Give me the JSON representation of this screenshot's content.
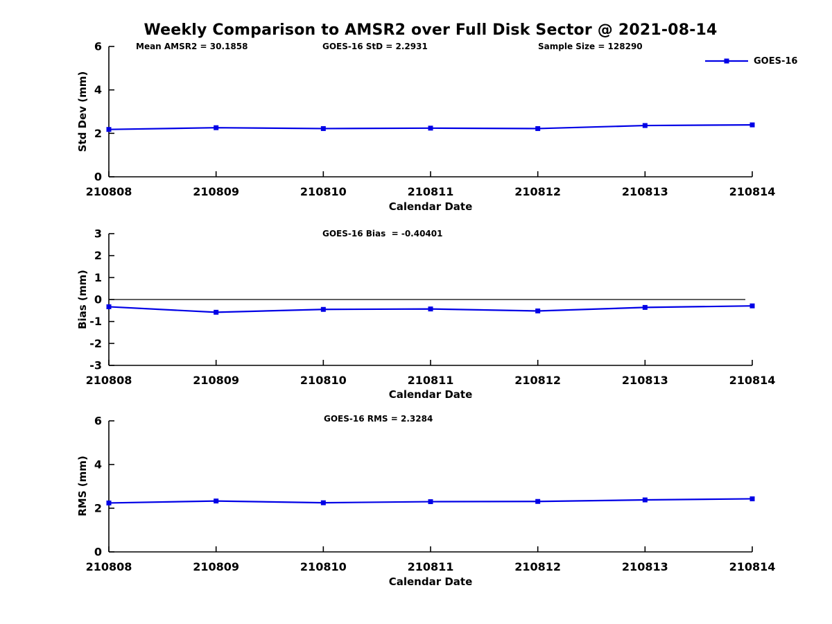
{
  "title": "Weekly Comparison to AMSR2 over Full Disk Sector @ 2021-08-14",
  "legend": {
    "label": "GOES-16",
    "line_color": "#0000e6"
  },
  "chart_data": [
    {
      "type": "line",
      "name": "std-dev",
      "annotations": [
        "Mean AMSR2 = 30.1858",
        "GOES-16 StD = 2.2931",
        "Sample Size = 128290"
      ],
      "xlabel": "Calendar Date",
      "ylabel": "Std Dev (mm)",
      "x": [
        "210808",
        "210809",
        "210810",
        "210811",
        "210812",
        "210813",
        "210814"
      ],
      "series": [
        {
          "name": "GOES-16",
          "color": "#0000e6",
          "values": [
            2.18,
            2.26,
            2.22,
            2.24,
            2.22,
            2.36,
            2.39
          ]
        }
      ],
      "ylim": [
        0,
        6
      ],
      "yticks": [
        0,
        2,
        4,
        6
      ],
      "zero_line": false,
      "legend_position": "top-right"
    },
    {
      "type": "line",
      "name": "bias",
      "annotations": [
        "GOES-16 Bias  = -0.40401"
      ],
      "xlabel": "Calendar Date",
      "ylabel": "Bias (mm)",
      "x": [
        "210808",
        "210809",
        "210810",
        "210811",
        "210812",
        "210813",
        "210814"
      ],
      "series": [
        {
          "name": "GOES-16",
          "color": "#0000e6",
          "values": [
            -0.33,
            -0.58,
            -0.45,
            -0.43,
            -0.52,
            -0.36,
            -0.29
          ]
        }
      ],
      "ylim": [
        -3,
        3
      ],
      "yticks": [
        -3,
        -2,
        -1,
        0,
        1,
        2,
        3
      ],
      "zero_line": true
    },
    {
      "type": "line",
      "name": "rms",
      "annotations": [
        "GOES-16 RMS = 2.3284"
      ],
      "xlabel": "Calendar Date",
      "ylabel": "RMS (mm)",
      "x": [
        "210808",
        "210809",
        "210810",
        "210811",
        "210812",
        "210813",
        "210814"
      ],
      "series": [
        {
          "name": "GOES-16",
          "color": "#0000e6",
          "values": [
            2.24,
            2.33,
            2.25,
            2.3,
            2.31,
            2.38,
            2.43
          ]
        }
      ],
      "ylim": [
        0,
        6
      ],
      "yticks": [
        0,
        2,
        4,
        6
      ],
      "zero_line": false
    }
  ]
}
